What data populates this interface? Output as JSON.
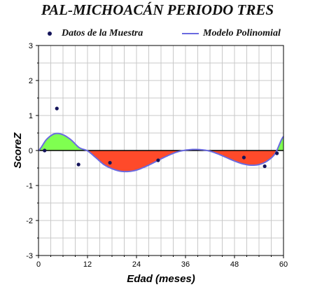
{
  "chart_data": {
    "type": "line",
    "title": "PAL-MICHOACÁN PERIODO TRES",
    "xlabel": "Edad (meses)",
    "ylabel": "ScoreZ",
    "xlim": [
      0,
      60
    ],
    "ylim": [
      -3,
      3
    ],
    "xticks": [
      0,
      12,
      24,
      36,
      48,
      60
    ],
    "yticks": [
      -3,
      -2,
      -1,
      0,
      1,
      2,
      3
    ],
    "grid": true,
    "legend_position": "top",
    "series": [
      {
        "name": "Datos de la Muestra",
        "kind": "scatter",
        "color": "#14145a",
        "points": [
          {
            "x": 1.5,
            "y": 0.0
          },
          {
            "x": 4.5,
            "y": 1.2
          },
          {
            "x": 9.8,
            "y": -0.4
          },
          {
            "x": 17.5,
            "y": -0.35
          },
          {
            "x": 29.3,
            "y": -0.28
          },
          {
            "x": 50.3,
            "y": -0.2
          },
          {
            "x": 55.4,
            "y": -0.45
          },
          {
            "x": 58.4,
            "y": -0.08
          }
        ]
      },
      {
        "name": "Modelo Polinomial",
        "kind": "line",
        "color": "#6a6ae0",
        "points": [
          {
            "x": 0,
            "y": 0.0
          },
          {
            "x": 2,
            "y": 0.32
          },
          {
            "x": 4,
            "y": 0.48
          },
          {
            "x": 6,
            "y": 0.45
          },
          {
            "x": 8,
            "y": 0.3
          },
          {
            "x": 10,
            "y": 0.08
          },
          {
            "x": 12,
            "y": -0.01
          },
          {
            "x": 14,
            "y": -0.2
          },
          {
            "x": 16,
            "y": -0.4
          },
          {
            "x": 18,
            "y": -0.52
          },
          {
            "x": 20,
            "y": -0.59
          },
          {
            "x": 22,
            "y": -0.6
          },
          {
            "x": 24,
            "y": -0.56
          },
          {
            "x": 26,
            "y": -0.47
          },
          {
            "x": 28,
            "y": -0.36
          },
          {
            "x": 30,
            "y": -0.24
          },
          {
            "x": 32,
            "y": -0.13
          },
          {
            "x": 34,
            "y": -0.04
          },
          {
            "x": 36,
            "y": 0.01
          },
          {
            "x": 38,
            "y": 0.03
          },
          {
            "x": 40,
            "y": 0.02
          },
          {
            "x": 42,
            "y": -0.02
          },
          {
            "x": 44,
            "y": -0.1
          },
          {
            "x": 46,
            "y": -0.2
          },
          {
            "x": 48,
            "y": -0.3
          },
          {
            "x": 50,
            "y": -0.38
          },
          {
            "x": 52,
            "y": -0.42
          },
          {
            "x": 54,
            "y": -0.4
          },
          {
            "x": 56,
            "y": -0.3
          },
          {
            "x": 58,
            "y": -0.08
          },
          {
            "x": 60,
            "y": 0.4
          }
        ]
      }
    ],
    "fill_colors": {
      "positive": "#7fff50",
      "negative": "#ff4a2a"
    }
  }
}
